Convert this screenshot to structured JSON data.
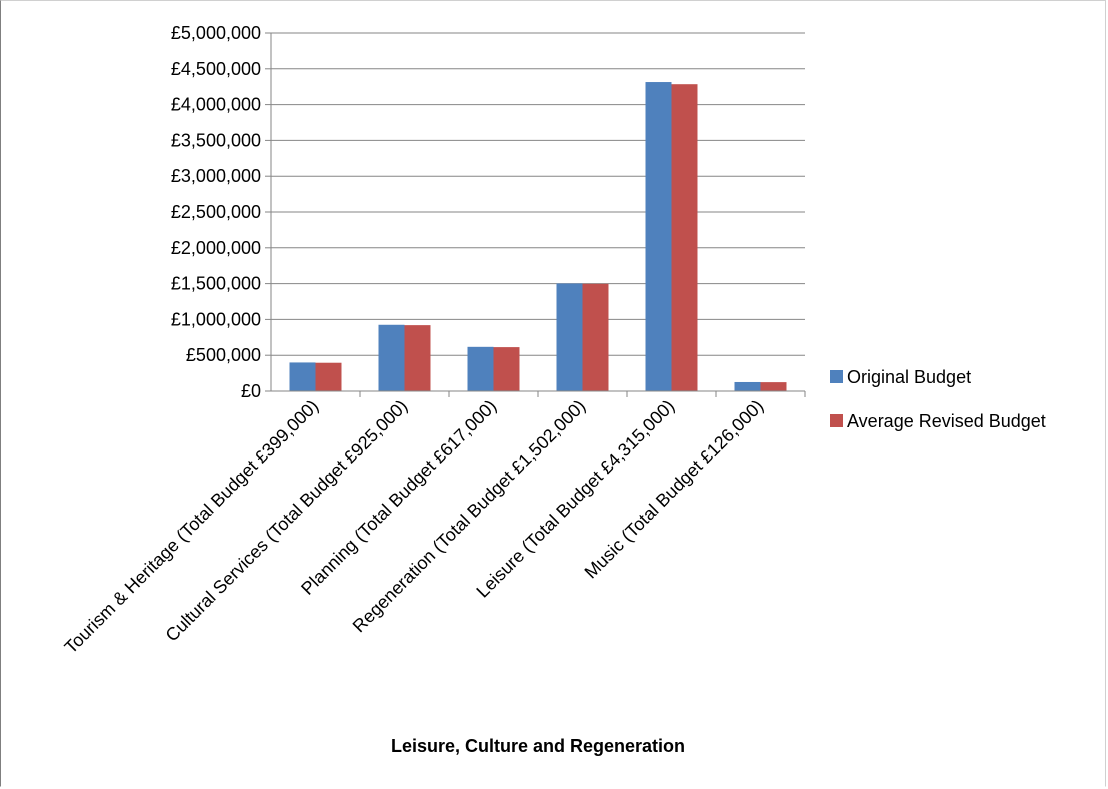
{
  "chart_data": {
    "type": "bar",
    "title": "",
    "xlabel": "Leisure, Culture and Regeneration",
    "ylabel": "",
    "ylim": [
      0,
      5000000
    ],
    "ytick_step": 500000,
    "yticks": [
      "£0",
      "£500,000",
      "£1,000,000",
      "£1,500,000",
      "£2,000,000",
      "£2,500,000",
      "£3,000,000",
      "£3,500,000",
      "£4,000,000",
      "£4,500,000",
      "£5,000,000"
    ],
    "grid": true,
    "legend_position": "right",
    "categories": [
      "Tourism & Heritage (Total Budget £399,000)",
      "Cultural Services (Total Budget £925,000)",
      "Planning (Total Budget £617,000)",
      "Regeneration (Total Budget £1,502,000)",
      "Leisure (Total Budget £4,315,000)",
      "Music (Total Budget £126,000)"
    ],
    "series": [
      {
        "name": "Original Budget",
        "color": "#4f81bd",
        "values": [
          399000,
          925000,
          617000,
          1502000,
          4315000,
          126000
        ]
      },
      {
        "name": "Average Revised Budget",
        "color": "#c0504d",
        "values": [
          395000,
          920000,
          613000,
          1497000,
          4285000,
          124000
        ]
      }
    ]
  }
}
